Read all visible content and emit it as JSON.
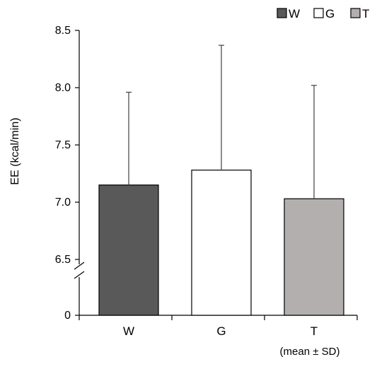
{
  "chart_data": {
    "type": "bar",
    "categories": [
      "W",
      "G",
      "T"
    ],
    "values": [
      7.15,
      7.28,
      7.03
    ],
    "error_sd": [
      0.81,
      1.09,
      0.99
    ],
    "ylabel": "EE (kcal/min)",
    "note": "(mean ± SD)",
    "y_ticks": [
      "0",
      "6.5",
      "7.0",
      "7.5",
      "8.0",
      "8.5"
    ],
    "y_axis_break": true,
    "ylim_upper": [
      6.5,
      8.5
    ],
    "legend": {
      "placement": "top-right",
      "entries": [
        {
          "label": "W",
          "color": "#595959"
        },
        {
          "label": "G",
          "color": "#ffffff"
        },
        {
          "label": "T",
          "color": "#b3afaf"
        }
      ]
    },
    "bar_colors": [
      "#595959",
      "#ffffff",
      "#b3afaf"
    ],
    "grid": false
  }
}
